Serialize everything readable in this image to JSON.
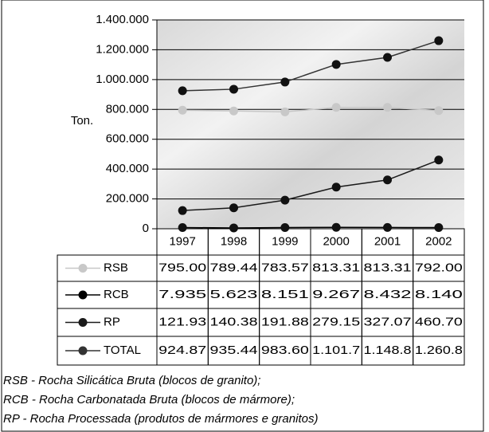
{
  "chart_data": {
    "type": "line",
    "y_label": "Ton.",
    "categories": [
      "1997",
      "1998",
      "1999",
      "2000",
      "2001",
      "2002"
    ],
    "ylim": [
      0,
      1400000
    ],
    "yticks": [
      0,
      {
        "value": 200000,
        "label": "200.000"
      },
      {
        "value": 400000,
        "label": "400.000"
      },
      {
        "value": 600000,
        "label": "600.000"
      },
      {
        "value": 800000,
        "label": "800.000"
      },
      {
        "value": 1000000,
        "label": "1.000.000"
      },
      {
        "value": 1200000,
        "label": "1.200.000"
      },
      {
        "value": 1400000,
        "label": "1.400.000"
      }
    ],
    "grid": true,
    "series": [
      {
        "name": "RSB",
        "color": "#c8c8c8",
        "values": [
          795000,
          789440,
          783570,
          813310,
          813310,
          792000
        ],
        "value_labels": [
          "795.00",
          "789.44",
          "783.57",
          "813.31",
          "813.31",
          "792.00"
        ]
      },
      {
        "name": "RCB",
        "color": "#000000",
        "values": [
          7935,
          5623,
          8151,
          9267,
          8432,
          8140
        ],
        "value_labels": [
          "7.935",
          "5.623",
          "8.151",
          "9.267",
          "8.432",
          "8.140"
        ]
      },
      {
        "name": "RP",
        "color": "#1a1a1a",
        "values": [
          121930,
          140380,
          191880,
          279150,
          327070,
          460700
        ],
        "value_labels": [
          "121.93",
          "140.38",
          "191.88",
          "279.15",
          "327.07",
          "460.70"
        ]
      },
      {
        "name": "TOTAL",
        "color": "#333333",
        "values": [
          924870,
          935440,
          983600,
          1101700,
          1148800,
          1260800
        ],
        "value_labels": [
          "924.87",
          "935.44",
          "983.60",
          "1.101.7",
          "1.148.8",
          "1.260.8"
        ]
      }
    ],
    "footnotes": [
      "RSB - Rocha Silicática Bruta (blocos de granito);",
      "RCB - Rocha Carbonatada Bruta (blocos de mármore);",
      "RP - Rocha Processada (produtos de mármores e granitos)"
    ]
  }
}
